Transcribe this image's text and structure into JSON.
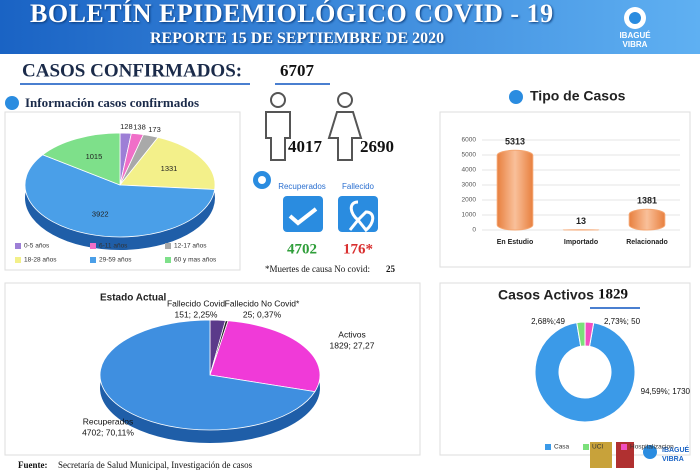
{
  "header": {
    "title": "BOLETÍN EPIDEMIOLÓGICO COVID - 19",
    "subtitle": "REPORTE 15 DE SEPTIEMBRE DE 2020",
    "logo": [
      "IBAGUÉ",
      "VIBRA"
    ]
  },
  "summary": {
    "label": "CASOS CONFIRMADOS:",
    "total": 6707,
    "men": 4017,
    "women": 2690,
    "recovered_label": "Recuperados",
    "recovered": 4702,
    "deceased_label": "Fallecido",
    "deceased": "176*",
    "note": "*Muertes de causa No covid:",
    "note_value": 25
  },
  "chart_data": [
    {
      "type": "pie",
      "title": "Información casos confirmados",
      "categories": [
        "0-5 años",
        "6-11 años",
        "12-17 años",
        "18-28 años",
        "29-59 años",
        "60 y mas años"
      ],
      "values": [
        128,
        138,
        173,
        1331,
        3922,
        1015
      ],
      "colors": [
        "#9d7fd6",
        "#f06fc8",
        "#a9a9a9",
        "#f3f08a",
        "#4a9fe8",
        "#7ee08a"
      ]
    },
    {
      "type": "bar",
      "title": "Tipo de Casos",
      "categories": [
        "En Estudio",
        "Importado",
        "Relacionado"
      ],
      "values": [
        5313,
        13,
        1381
      ],
      "color": "#f4a672",
      "ylim": [
        0,
        6000
      ],
      "yticks": [
        0,
        1000,
        2000,
        3000,
        4000,
        5000,
        6000
      ],
      "grid": true
    },
    {
      "type": "pie",
      "title": "Estado Actual",
      "categories": [
        "Fallecido Covid",
        "Fallecido No Covid*",
        "Activos",
        "Recuperados"
      ],
      "values": [
        151,
        25,
        1829,
        4702
      ],
      "value_labels": [
        "151; 2,25%",
        "25; 0,37%",
        "1829; 27,27",
        "4702; 70,11%"
      ],
      "colors": [
        "#5b3a8a",
        "#222222",
        "#f03ad8",
        "#3f8fe0"
      ]
    },
    {
      "type": "donut",
      "title": "Casos Activos",
      "total": 1829,
      "categories": [
        "Casa",
        "UCI",
        "Hospitalizacion"
      ],
      "values": [
        1730,
        49,
        50
      ],
      "value_labels": [
        "94,59%; 1730",
        "2,68%;49",
        "2,73%; 50"
      ],
      "colors": [
        "#3b9ae8",
        "#7be07b",
        "#f24fc0"
      ]
    }
  ],
  "footer": {
    "label": "Fuente:",
    "text": "Secretaría de Salud Municipal, Investigación de casos"
  }
}
